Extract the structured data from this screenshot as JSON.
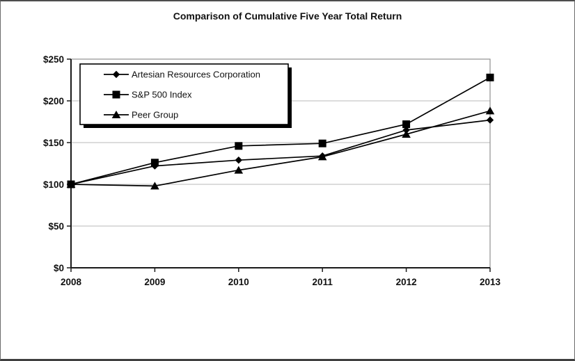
{
  "chart_data": {
    "type": "line",
    "title": "Comparison of Cumulative Five Year Total Return",
    "categories": [
      "2008",
      "2009",
      "2010",
      "2011",
      "2012",
      "2013"
    ],
    "xlabel": "",
    "ylabel": "",
    "ylim": [
      0,
      250
    ],
    "y_ticks": {
      "values": [
        0,
        50,
        100,
        150,
        200,
        250
      ],
      "labels": [
        "$0",
        "$50",
        "$100",
        "$150",
        "$200",
        "$250"
      ]
    },
    "grid": "horizontal",
    "legend_position": "top-left-inside",
    "series": [
      {
        "name": "Artesian Resources Corporation",
        "marker": "diamond",
        "color": "#000000",
        "values": [
          100,
          122,
          129,
          134,
          165,
          177
        ]
      },
      {
        "name": "S&P 500 Index",
        "marker": "square",
        "color": "#000000",
        "values": [
          100,
          126,
          146,
          149,
          172,
          228
        ]
      },
      {
        "name": "Peer Group",
        "marker": "triangle",
        "color": "#000000",
        "values": [
          100,
          98,
          117,
          133,
          160,
          188
        ]
      }
    ]
  },
  "colors": {
    "background": "#ffffff",
    "gridline": "#c6c6c6",
    "plot_border": "#8f8f8f",
    "axis": "#1a1a1a",
    "text": "#111111",
    "series": "#000000",
    "legend_border": "#000000",
    "legend_shadow": "#000000",
    "legend_fill": "#ffffff"
  }
}
